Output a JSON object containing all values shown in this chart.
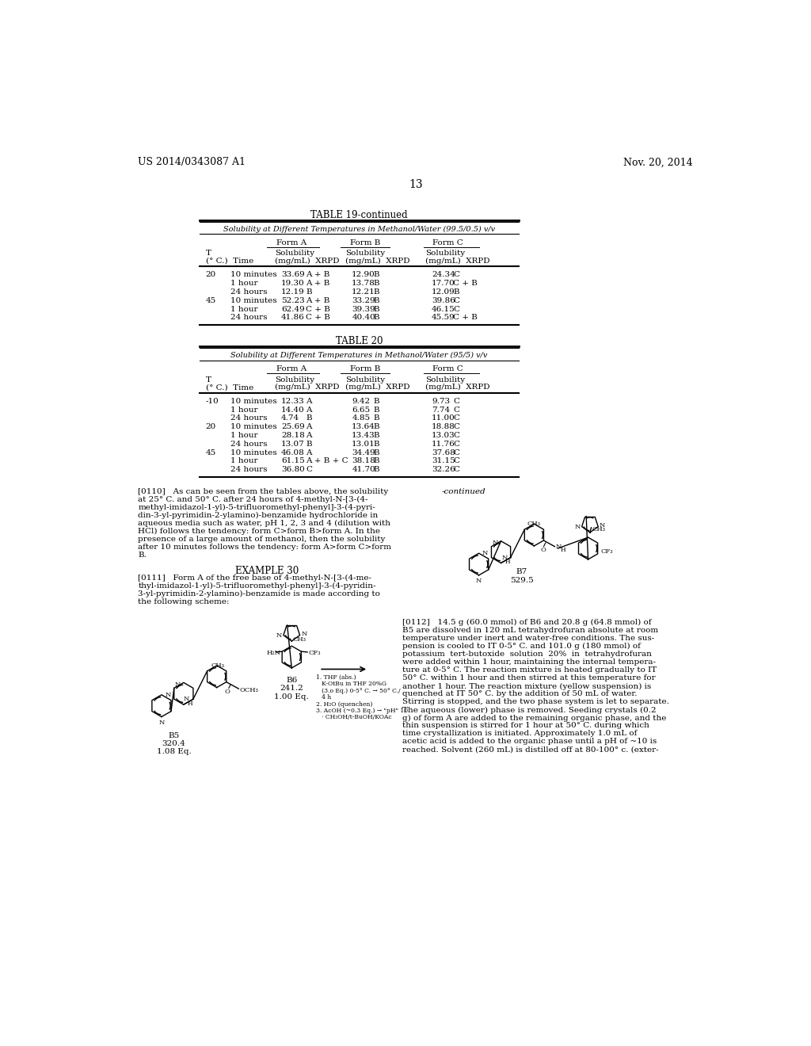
{
  "bg_color": "#ffffff",
  "page_number": "13",
  "header_left": "US 2014/0343087 A1",
  "header_right": "Nov. 20, 2014",
  "table19_title": "TABLE 19-continued",
  "table19_subtitle": "Solubility at Different Temperatures in Methanol/Water (99.5/0.5) v/v",
  "table20_title": "TABLE 20",
  "table20_subtitle": "Solubility at Different Temperatures in Methanol/Water (95/5) v/v",
  "table19_data": [
    [
      "20",
      "10 minutes",
      "33.69",
      "A + B",
      "12.90",
      "B",
      "24.34",
      "C"
    ],
    [
      "",
      "1 hour",
      "19.30",
      "A + B",
      "13.78",
      "B",
      "17.70",
      "C + B"
    ],
    [
      "",
      "24 hours",
      "12.19",
      "B",
      "12.21",
      "B",
      "12.09",
      "B"
    ],
    [
      "45",
      "10 minutes",
      "52.23",
      "A + B",
      "33.29",
      "B",
      "39.86",
      "C"
    ],
    [
      "",
      "1 hour",
      "62.49",
      "C + B",
      "39.39",
      "B",
      "46.15",
      "C"
    ],
    [
      "",
      "24 hours",
      "41.86",
      "C + B",
      "40.40",
      "B",
      "45.59",
      "C + B"
    ]
  ],
  "table20_data": [
    [
      "-10",
      "10 minutes",
      "12.33",
      "A",
      "9.42",
      "B",
      "9.73",
      "C"
    ],
    [
      "",
      "1 hour",
      "14.40",
      "A",
      "6.65",
      "B",
      "7.74",
      "C"
    ],
    [
      "",
      "24 hours",
      "4.74",
      "B",
      "4.85",
      "B",
      "11.00",
      "C"
    ],
    [
      "20",
      "10 minutes",
      "25.69",
      "A",
      "13.64",
      "B",
      "18.88",
      "C"
    ],
    [
      "",
      "1 hour",
      "28.18",
      "A",
      "13.43",
      "B",
      "13.03",
      "C"
    ],
    [
      "",
      "24 hours",
      "13.07",
      "B",
      "13.01",
      "B",
      "11.76",
      "C"
    ],
    [
      "45",
      "10 minutes",
      "46.08",
      "A",
      "34.49",
      "B",
      "37.68",
      "C"
    ],
    [
      "",
      "1 hour",
      "61.15",
      "A + B + C",
      "38.18",
      "B",
      "31.15",
      "C"
    ],
    [
      "",
      "24 hours",
      "36.80",
      "C",
      "41.70",
      "B",
      "32.26",
      "C"
    ]
  ],
  "lines_0110": [
    "[0110]   As can be seen from the tables above, the solubility",
    "at 25° C. and 50° C. after 24 hours of 4-methyl-N-[3-(4-",
    "methyl-imidazol-1-yl)-5-trifluoromethyl-phenyl]-3-(4-pyri-",
    "din-3-yl-pyrimidin-2-ylamino)-benzamide hydrochloride in",
    "aqueous media such as water, pH 1, 2, 3 and 4 (dilution with",
    "HCl) follows the tendency: form C>form B>form A. In the",
    "presence of a large amount of methanol, then the solubility",
    "after 10 minutes follows the tendency: form A>form C>form",
    "B."
  ],
  "example30_title": "EXAMPLE 30",
  "lines_0111": [
    "[0111]   Form A of the free base of 4-methyl-N-[3-(4-me-",
    "thyl-imidazol-1-yl)-5-trifluoromethyl-phenyl]-3-(4-pyridin-",
    "3-yl-pyrimidin-2-ylamino)-benzamide is made according to",
    "the following scheme:"
  ],
  "continued_label": "-continued",
  "B5_label": "B5",
  "B5_mw": "320.4",
  "B5_eq": "1.08 Eq.",
  "B6_label": "B6",
  "B6_mw": "241.2",
  "B6_eq": "1.00 Eq.",
  "B7_label": "B7",
  "B7_mw": "529.5",
  "reaction_conditions": [
    "1. THF (abs.)",
    "   K-OtBu in THF 20%G",
    "   (3.o Eq.) 0-5° C. → 50° C./",
    "   4 h",
    "2. H₂O (quenchen)",
    "3. AcOH (~0.3 Eq.) → \"pH\" 10",
    "   · CH₃OH/t-BuOH/KOAc"
  ],
  "lines_0112": [
    "[0112]   14.5 g (60.0 mmol) of B6 and 20.8 g (64.8 mmol) of",
    "B5 are dissolved in 120 mL tetrahydrofuran absolute at room",
    "temperature under inert and water-free conditions. The sus-",
    "pension is cooled to IT 0-5° C. and 101.0 g (180 mmol) of",
    "potassium  tert-butoxide  solution  20%  in  tetrahydrofuran",
    "were added within 1 hour, maintaining the internal tempera-",
    "ture at 0-5° C. The reaction mixture is heated gradually to IT",
    "50° C. within 1 hour and then stirred at this temperature for",
    "another 1 hour. The reaction mixture (yellow suspension) is",
    "quenched at IT 50° C. by the addition of 50 mL of water.",
    "Stirring is stopped, and the two phase system is let to separate.",
    "The aqueous (lower) phase is removed. Seeding crystals (0.2",
    "g) of form A are added to the remaining organic phase, and the",
    "thin suspension is stirred for 1 hour at 50° C. during which",
    "time crystallization is initiated. Approximately 1.0 mL of",
    "acetic acid is added to the organic phase until a pH of ~10 is",
    "reached. Solvent (260 mL) is distilled off at 80-100° c. (exter-"
  ]
}
